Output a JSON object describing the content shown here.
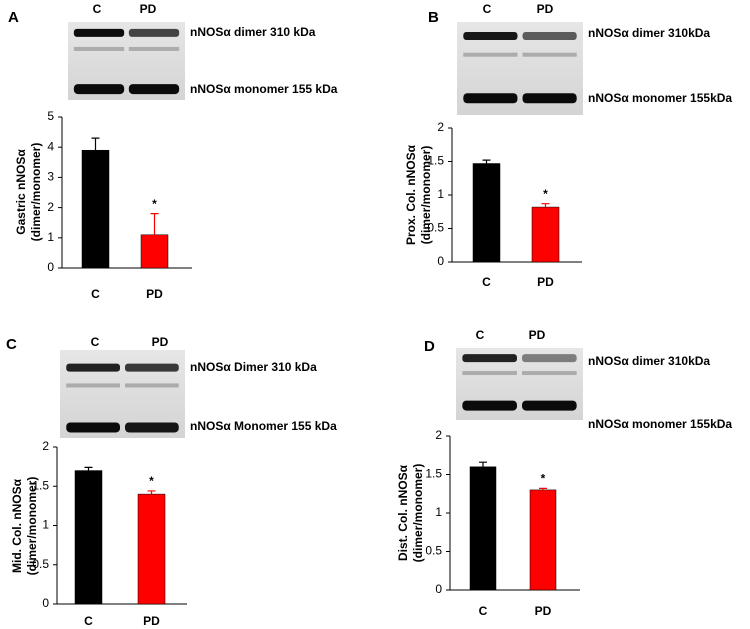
{
  "chart_data": [
    {
      "type": "bar",
      "panel": "A",
      "blot_lanes": [
        "C",
        "PD"
      ],
      "blot_bands": [
        "nNOSα dimer 310 kDa",
        "nNOSα monomer 155 kDa"
      ],
      "ylabel": [
        "Gastric nNOSα",
        "(dimer/monomer)"
      ],
      "categories": [
        "C",
        "PD"
      ],
      "values": [
        3.9,
        1.1
      ],
      "errors": [
        0.4,
        0.7
      ],
      "colors": [
        "#000000",
        "#ff0000"
      ],
      "significance": [
        null,
        "*"
      ],
      "ylim": [
        0,
        5
      ],
      "yticks": [
        0,
        1,
        2,
        3,
        4,
        5
      ]
    },
    {
      "type": "bar",
      "panel": "B",
      "blot_lanes": [
        "C",
        "PD"
      ],
      "blot_bands": [
        "nNOSα dimer 310kDa",
        "nNOSα monomer 155kDa"
      ],
      "ylabel": [
        "Prox. Col. nNOSα",
        "(dimer/monomer)"
      ],
      "categories": [
        "C",
        "PD"
      ],
      "values": [
        1.47,
        0.82
      ],
      "errors": [
        0.05,
        0.05
      ],
      "colors": [
        "#000000",
        "#ff0000"
      ],
      "significance": [
        null,
        "*"
      ],
      "ylim": [
        0,
        2
      ],
      "yticks": [
        0,
        0.5,
        1,
        1.5,
        2
      ]
    },
    {
      "type": "bar",
      "panel": "C",
      "blot_lanes": [
        "C",
        "PD"
      ],
      "blot_bands": [
        "nNOSα Dimer 310 kDa",
        "nNOSα Monomer 155 kDa"
      ],
      "ylabel": [
        "Mid. Col. nNOSα",
        "(dimer/monomer)"
      ],
      "categories": [
        "C",
        "PD"
      ],
      "values": [
        1.7,
        1.4
      ],
      "errors": [
        0.04,
        0.04
      ],
      "colors": [
        "#000000",
        "#ff0000"
      ],
      "significance": [
        null,
        "*"
      ],
      "ylim": [
        0,
        2
      ],
      "yticks": [
        0,
        0.5,
        1,
        1.5,
        2
      ]
    },
    {
      "type": "bar",
      "panel": "D",
      "blot_lanes": [
        "C",
        "PD"
      ],
      "blot_bands": [
        "nNOSα dimer 310kDa",
        "nNOSα monomer 155kDa"
      ],
      "ylabel": [
        "Dist. Col. nNOSα",
        "(dimer/monomer)"
      ],
      "categories": [
        "C",
        "PD"
      ],
      "values": [
        1.6,
        1.3
      ],
      "errors": [
        0.06,
        0.02
      ],
      "colors": [
        "#000000",
        "#ff0000"
      ],
      "significance": [
        null,
        "*"
      ],
      "ylim": [
        0,
        2
      ],
      "yticks": [
        0,
        0.5,
        1,
        1.5,
        2
      ]
    }
  ]
}
